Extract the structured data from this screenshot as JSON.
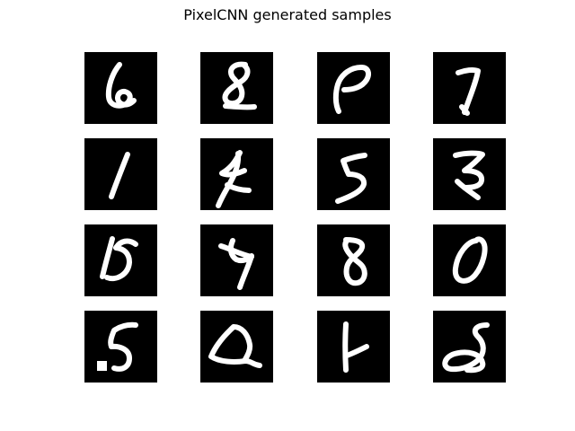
{
  "figure": {
    "title": "PixelCNN generated samples",
    "background": "#ffffff",
    "sample_background": "#000000",
    "stroke_color": "#ffffff",
    "grid": {
      "rows": 4,
      "cols": 4
    },
    "samples": [
      {
        "row": 1,
        "col": 1,
        "label": "6"
      },
      {
        "row": 1,
        "col": 2,
        "label": "8"
      },
      {
        "row": 1,
        "col": 3,
        "label": "P"
      },
      {
        "row": 1,
        "col": 4,
        "label": "7"
      },
      {
        "row": 2,
        "col": 1,
        "label": "1"
      },
      {
        "row": 2,
        "col": 2,
        "label": "4"
      },
      {
        "row": 2,
        "col": 3,
        "label": "5"
      },
      {
        "row": 2,
        "col": 4,
        "label": "3"
      },
      {
        "row": 3,
        "col": 1,
        "label": "15"
      },
      {
        "row": 3,
        "col": 2,
        "label": "4"
      },
      {
        "row": 3,
        "col": 3,
        "label": "8"
      },
      {
        "row": 3,
        "col": 4,
        "label": "0"
      },
      {
        "row": 4,
        "col": 1,
        "label": "5"
      },
      {
        "row": 4,
        "col": 2,
        "label": "0"
      },
      {
        "row": 4,
        "col": 3,
        "label": "1"
      },
      {
        "row": 4,
        "col": 4,
        "label": "8"
      }
    ]
  }
}
